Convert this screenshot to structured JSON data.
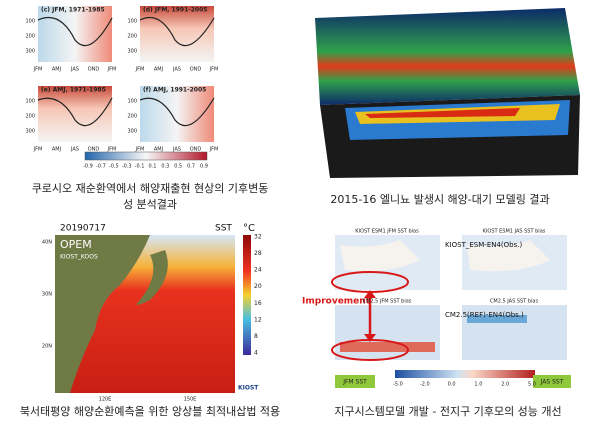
{
  "panels": [
    {
      "figure": {
        "subplots": [
          "(c) JFM, 1971-1985",
          "(d) JFM, 1991-2005",
          "(e) AMJ, 1971-1985",
          "(f) AMJ, 1991-2005"
        ],
        "depths": [
          "100",
          "200",
          "300"
        ],
        "months": [
          "JFM",
          "AMJ",
          "JAS",
          "OND",
          "JFM"
        ],
        "colorbar": [
          "-0.9",
          "-0.7",
          "-0.5",
          "-0.3",
          "-0.1",
          "0.1",
          "0.3",
          "0.5",
          "0.7",
          "0.9"
        ]
      },
      "caption": [
        "쿠로시오 재순환역에서 해양재출현 현상의 기후변동",
        "성 분석결과"
      ]
    },
    {
      "caption": [
        "2015-16 엘니뇨 발생시 해양-대기 모델링 결과"
      ]
    },
    {
      "figure": {
        "date": "20190717",
        "variable": "SST",
        "unit": "°C",
        "model": "OPEM",
        "system": "KIOST_KOOS",
        "lats": [
          "40N",
          "30N",
          "20N"
        ],
        "lons": [
          "120E",
          "150E"
        ],
        "colorbar": [
          "32",
          "28",
          "24",
          "20",
          "16",
          "12",
          "8",
          "4"
        ],
        "logo": "KIOST"
      },
      "caption": [
        "북서태평양 해양순환예측을 위한 앙상블 최적내삽법 적용"
      ]
    },
    {
      "figure": {
        "titles": [
          "KIOST ESM1 JFM SST bias",
          "KIOST ESM1 JAS SST bias",
          "CM2.5 JFM SST bias",
          "CM2.5 JAS SST bias"
        ],
        "labels": [
          "KIOST_ESM-EN4(Obs.)",
          "CM2.5(REF)-EN4(Obs.)"
        ],
        "annotation": "Improvement",
        "seasons": [
          "JFM SST",
          "JAS SST"
        ],
        "colorbar": [
          "-5.0",
          "-2.0",
          "0.0",
          "1.0",
          "2.0",
          "5.0"
        ]
      },
      "caption": [
        "지구시스템모델 개발 - 전지구 기후모의 성능 개선"
      ]
    }
  ]
}
